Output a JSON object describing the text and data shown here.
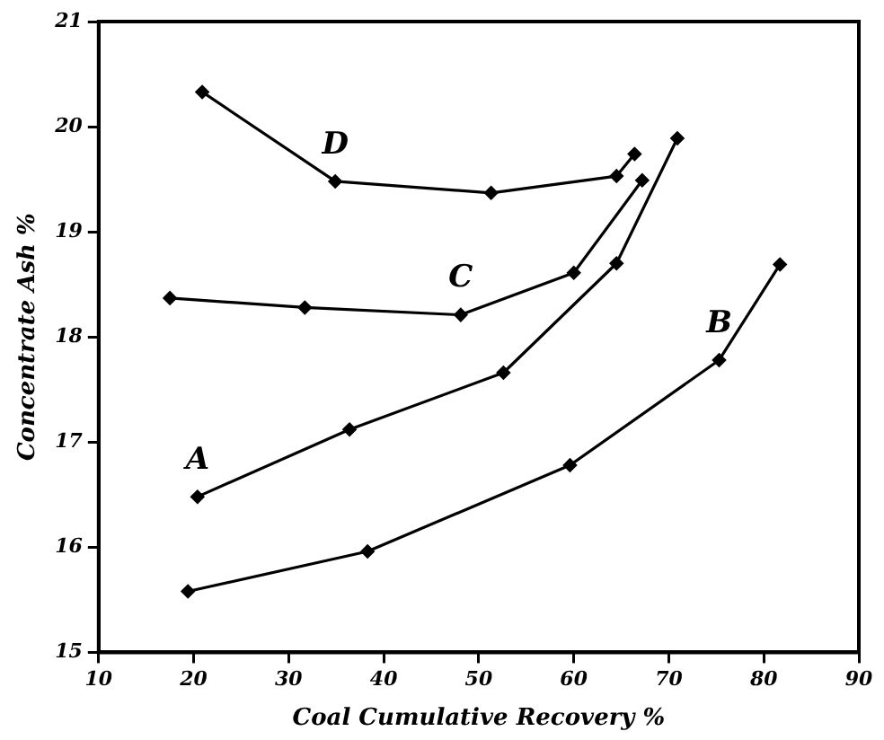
{
  "chart_data": {
    "type": "line",
    "xlabel": "Coal Cumulative Recovery %",
    "ylabel": "Concentrate Ash %",
    "xlim": [
      10,
      90
    ],
    "xticks": [
      10,
      20,
      30,
      40,
      50,
      60,
      70,
      80,
      90
    ],
    "ylim": [
      15,
      21
    ],
    "yticks": [
      15,
      16,
      17,
      18,
      19,
      20,
      21
    ],
    "grid": false,
    "legend": false,
    "marker": "diamond",
    "line_style": "solid",
    "series": [
      {
        "name": "A",
        "color": "#000000",
        "x": [
          20.4,
          36.4,
          52.6,
          64.5,
          70.9
        ],
        "values": [
          16.48,
          17.12,
          17.66,
          18.7,
          19.89
        ]
      },
      {
        "name": "B",
        "color": "#000000",
        "x": [
          19.4,
          38.3,
          59.6,
          75.3,
          81.7
        ],
        "values": [
          15.58,
          15.96,
          16.78,
          17.78,
          18.69
        ]
      },
      {
        "name": "C",
        "color": "#000000",
        "x": [
          17.5,
          31.7,
          48.1,
          60.0,
          67.2
        ],
        "values": [
          18.37,
          18.28,
          18.21,
          18.61,
          19.49
        ]
      },
      {
        "name": "D",
        "color": "#000000",
        "x": [
          20.9,
          34.9,
          51.3,
          64.5,
          66.4
        ],
        "values": [
          20.33,
          19.48,
          19.37,
          19.53,
          19.74
        ]
      }
    ]
  }
}
